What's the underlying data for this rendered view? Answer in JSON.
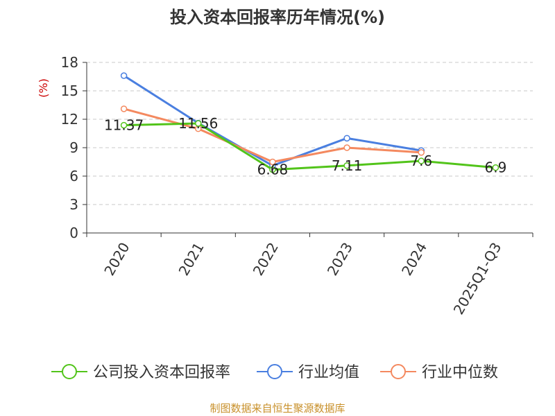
{
  "chart_data": {
    "type": "line",
    "title": "投入资本回报率历年情况(%)",
    "ylabel": "(%)",
    "xlabel": "",
    "categories": [
      "2020",
      "2021",
      "2022",
      "2023",
      "2024",
      "2025Q1-Q3"
    ],
    "ylim": [
      0,
      18
    ],
    "yticks": [
      0,
      3,
      6,
      9,
      12,
      15,
      18
    ],
    "grid": true,
    "legend_position": "bottom",
    "series": [
      {
        "name": "公司投入资本回报率",
        "color": "#52c41a",
        "values": [
          11.37,
          11.56,
          6.68,
          7.11,
          7.6,
          6.9
        ],
        "labels": [
          "11.37",
          "11.56",
          "6.68",
          "7.11",
          "7.6",
          "6.9"
        ]
      },
      {
        "name": "行业均值",
        "color": "#4a7fe0",
        "values": [
          16.6,
          11.6,
          7.1,
          10.0,
          8.7,
          null
        ]
      },
      {
        "name": "行业中位数",
        "color": "#f4895f",
        "values": [
          13.1,
          11.0,
          7.5,
          9.0,
          8.5,
          null
        ]
      }
    ],
    "source": "制图数据来自恒生聚源数据库",
    "source_color": "#c8902a"
  }
}
